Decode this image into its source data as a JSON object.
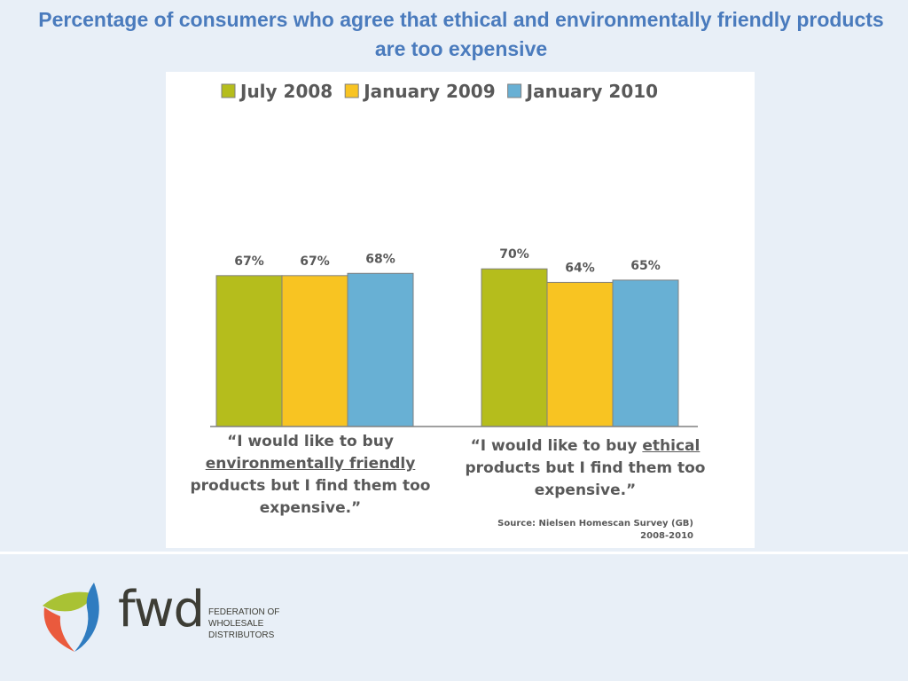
{
  "slide": {
    "title": "Percentage of consumers who agree that ethical and environmentally friendly products are too expensive"
  },
  "chart_data": {
    "type": "bar",
    "categories": [
      "“I would like to buy environmentally friendly products but I find them too expensive.”",
      "“I would like to buy ethical products but I find them too expensive.”"
    ],
    "series": [
      {
        "name": "July 2008",
        "values": [
          67,
          70
        ],
        "color": "#b5bd1c"
      },
      {
        "name": "January 2009",
        "values": [
          67,
          64
        ],
        "color": "#f8c422"
      },
      {
        "name": "January 2010",
        "values": [
          68,
          65
        ],
        "color": "#68b0d4"
      }
    ],
    "data_labels": [
      [
        "67%",
        "70%"
      ],
      [
        "67%",
        "64%"
      ],
      [
        "68%",
        "65%"
      ]
    ],
    "ylim": [
      0,
      100
    ],
    "legend_position": "top",
    "grid": false,
    "source": "Source: Nielsen Homescan Survey (GB) 2008-2010"
  },
  "captions": {
    "left": {
      "line1": "“I would like to buy",
      "line2": "environmentally friendly",
      "line3": "products but I find them too",
      "line4": "expensive.”"
    },
    "right": {
      "line1a": "“I would like to buy ",
      "line1b": "ethical",
      "line2": "products but I find them too",
      "line3": "expensive.”"
    }
  },
  "source": {
    "line1": "Source: Nielsen Homescan Survey (GB)",
    "line2": "2008-2010"
  },
  "branding": {
    "logo_text": "fwd",
    "org_line1": "FEDERATION OF",
    "org_line2": "WHOLESALE",
    "org_line3": "DISTRIBUTORS",
    "logo_colors": {
      "green": "#a9c234",
      "orange": "#ea5a3d",
      "blue": "#2f7cc0"
    }
  }
}
